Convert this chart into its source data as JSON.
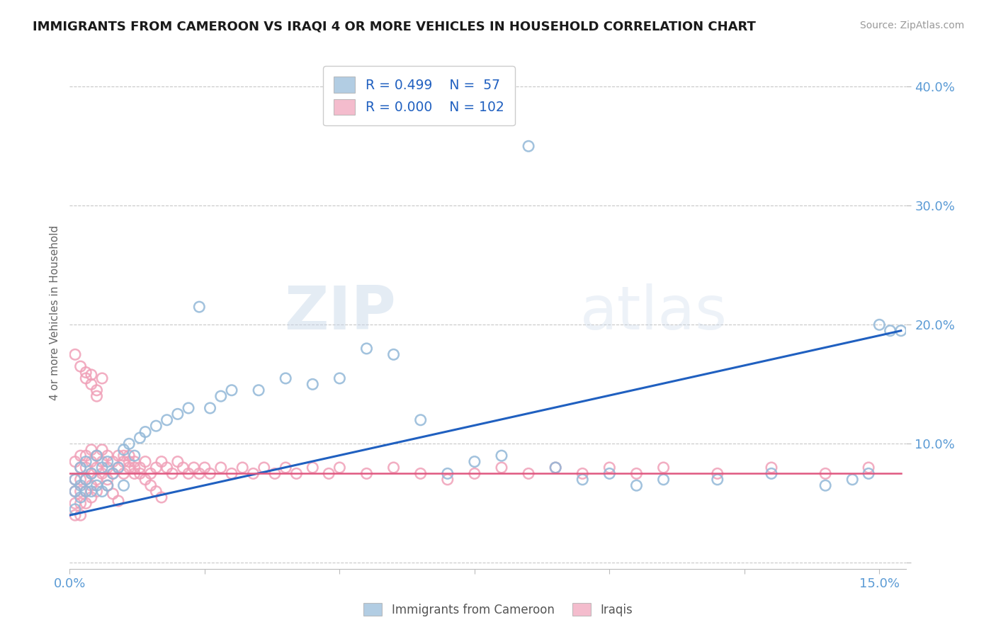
{
  "title": "IMMIGRANTS FROM CAMEROON VS IRAQI 4 OR MORE VEHICLES IN HOUSEHOLD CORRELATION CHART",
  "source": "Source: ZipAtlas.com",
  "ylabel": "4 or more Vehicles in Household",
  "xlim": [
    0.0,
    0.155
  ],
  "ylim": [
    -0.005,
    0.425
  ],
  "background_color": "#ffffff",
  "watermark_text": "ZIPatlas",
  "legend_R_cameroon": "0.499",
  "legend_N_cameroon": "57",
  "legend_R_iraqi": "0.000",
  "legend_N_iraqi": "102",
  "cameroon_color": "#92b8d8",
  "iraqi_color": "#f0a0b8",
  "cameroon_line_color": "#2060c0",
  "iraqi_line_color": "#e05880",
  "title_color": "#1a1a1a",
  "axis_color": "#5b9bd5",
  "grid_color": "#c8c8c8",
  "source_color": "#999999",
  "legend_text_color": "#2060c0",
  "cam_x": [
    0.001,
    0.001,
    0.001,
    0.002,
    0.002,
    0.002,
    0.003,
    0.003,
    0.003,
    0.004,
    0.004,
    0.005,
    0.005,
    0.006,
    0.006,
    0.007,
    0.007,
    0.008,
    0.009,
    0.01,
    0.01,
    0.011,
    0.012,
    0.013,
    0.014,
    0.016,
    0.018,
    0.02,
    0.022,
    0.024,
    0.026,
    0.028,
    0.03,
    0.035,
    0.04,
    0.045,
    0.05,
    0.055,
    0.06,
    0.065,
    0.07,
    0.075,
    0.08,
    0.085,
    0.09,
    0.095,
    0.1,
    0.105,
    0.11,
    0.12,
    0.13,
    0.14,
    0.145,
    0.148,
    0.15,
    0.152,
    0.154
  ],
  "cam_y": [
    0.07,
    0.06,
    0.045,
    0.08,
    0.065,
    0.055,
    0.085,
    0.07,
    0.06,
    0.075,
    0.06,
    0.09,
    0.065,
    0.08,
    0.06,
    0.085,
    0.065,
    0.075,
    0.08,
    0.095,
    0.065,
    0.1,
    0.09,
    0.105,
    0.11,
    0.115,
    0.12,
    0.125,
    0.13,
    0.215,
    0.13,
    0.14,
    0.145,
    0.145,
    0.155,
    0.15,
    0.155,
    0.18,
    0.175,
    0.12,
    0.075,
    0.085,
    0.09,
    0.35,
    0.08,
    0.07,
    0.075,
    0.065,
    0.07,
    0.07,
    0.075,
    0.065,
    0.07,
    0.075,
    0.2,
    0.195,
    0.195
  ],
  "irq_x": [
    0.001,
    0.001,
    0.001,
    0.001,
    0.001,
    0.002,
    0.002,
    0.002,
    0.002,
    0.002,
    0.002,
    0.003,
    0.003,
    0.003,
    0.003,
    0.003,
    0.004,
    0.004,
    0.004,
    0.004,
    0.004,
    0.005,
    0.005,
    0.005,
    0.005,
    0.006,
    0.006,
    0.006,
    0.007,
    0.007,
    0.007,
    0.008,
    0.008,
    0.009,
    0.009,
    0.01,
    0.01,
    0.011,
    0.011,
    0.012,
    0.012,
    0.013,
    0.014,
    0.015,
    0.016,
    0.017,
    0.018,
    0.019,
    0.02,
    0.021,
    0.022,
    0.023,
    0.024,
    0.025,
    0.026,
    0.028,
    0.03,
    0.032,
    0.034,
    0.036,
    0.038,
    0.04,
    0.042,
    0.045,
    0.048,
    0.05,
    0.055,
    0.06,
    0.065,
    0.07,
    0.075,
    0.08,
    0.085,
    0.09,
    0.095,
    0.1,
    0.105,
    0.11,
    0.12,
    0.13,
    0.14,
    0.148,
    0.001,
    0.002,
    0.003,
    0.003,
    0.004,
    0.004,
    0.005,
    0.005,
    0.006,
    0.007,
    0.008,
    0.009,
    0.01,
    0.011,
    0.012,
    0.013,
    0.014,
    0.015,
    0.016,
    0.017
  ],
  "irq_y": [
    0.085,
    0.07,
    0.06,
    0.05,
    0.04,
    0.09,
    0.08,
    0.07,
    0.06,
    0.05,
    0.04,
    0.09,
    0.08,
    0.07,
    0.06,
    0.05,
    0.095,
    0.085,
    0.075,
    0.065,
    0.055,
    0.09,
    0.08,
    0.07,
    0.06,
    0.095,
    0.085,
    0.075,
    0.09,
    0.08,
    0.07,
    0.085,
    0.075,
    0.09,
    0.08,
    0.085,
    0.075,
    0.09,
    0.08,
    0.085,
    0.075,
    0.08,
    0.085,
    0.075,
    0.08,
    0.085,
    0.08,
    0.075,
    0.085,
    0.08,
    0.075,
    0.08,
    0.075,
    0.08,
    0.075,
    0.08,
    0.075,
    0.08,
    0.075,
    0.08,
    0.075,
    0.08,
    0.075,
    0.08,
    0.075,
    0.08,
    0.075,
    0.08,
    0.075,
    0.07,
    0.075,
    0.08,
    0.075,
    0.08,
    0.075,
    0.08,
    0.075,
    0.08,
    0.075,
    0.08,
    0.075,
    0.08,
    0.175,
    0.165,
    0.16,
    0.155,
    0.158,
    0.15,
    0.145,
    0.14,
    0.155,
    0.065,
    0.058,
    0.052,
    0.09,
    0.085,
    0.08,
    0.075,
    0.07,
    0.065,
    0.06,
    0.055
  ],
  "cam_line_x": [
    0.0,
    0.154
  ],
  "cam_line_y": [
    0.04,
    0.195
  ],
  "irq_line_x": [
    0.0,
    0.154
  ],
  "irq_line_y": [
    0.075,
    0.075
  ]
}
